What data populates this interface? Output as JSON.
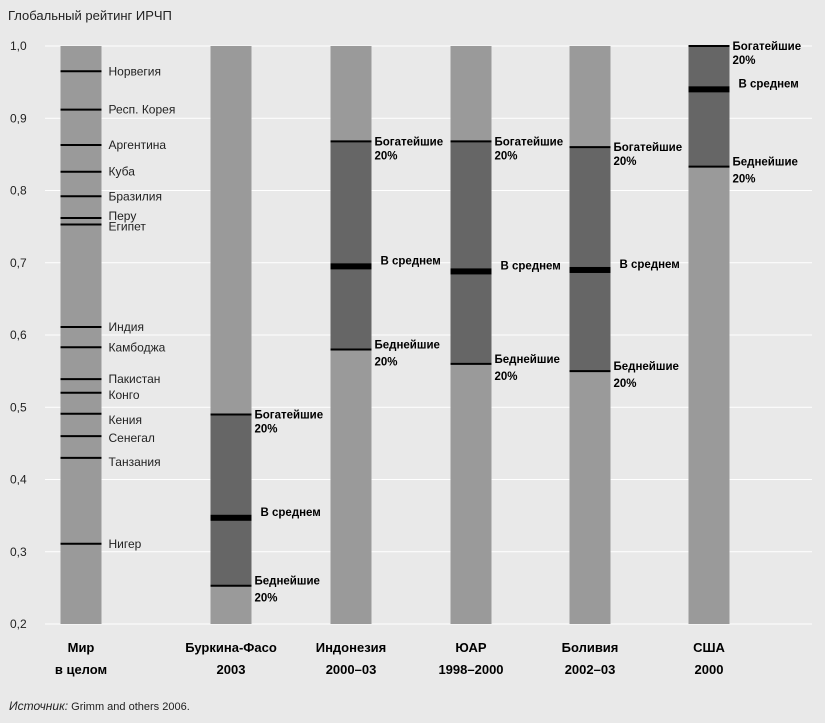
{
  "chart_data": {
    "type": "bar",
    "ylabel": "Глобальный рейтинг ИРЧП",
    "ylim": [
      0.2,
      1.0
    ],
    "yticks": [
      "0,2",
      "0,3",
      "0,4",
      "0,5",
      "0,6",
      "0,7",
      "0,8",
      "0,9",
      "1,0"
    ],
    "grid": true,
    "source_key": "Источник:",
    "source_text": " Grimm and others 2006.",
    "world": {
      "label_line1": "Мир",
      "label_line2": "в целом",
      "countries": [
        {
          "name": "Норвегия",
          "value": 0.965
        },
        {
          "name": "Респ. Корея",
          "value": 0.912
        },
        {
          "name": "Аргентина",
          "value": 0.863
        },
        {
          "name": "Куба",
          "value": 0.826
        },
        {
          "name": "Бразилия",
          "value": 0.792
        },
        {
          "name": "Перу",
          "value": 0.762
        },
        {
          "name": "Египет",
          "value": 0.753
        },
        {
          "name": "Индия",
          "value": 0.611
        },
        {
          "name": "Камбоджа",
          "value": 0.583
        },
        {
          "name": "Пакистан",
          "value": 0.539
        },
        {
          "name": "Конго",
          "value": 0.52
        },
        {
          "name": "Кения",
          "value": 0.491
        },
        {
          "name": "Сенегал",
          "value": 0.46
        },
        {
          "name": "Танзания",
          "value": 0.43
        },
        {
          "name": "Нигер",
          "value": 0.311
        }
      ]
    },
    "countries": [
      {
        "line1": "Буркина-Фасо",
        "line2": "2003",
        "richest": 0.49,
        "average": 0.347,
        "poorest": 0.253,
        "label_pos": "right"
      },
      {
        "line1": "Индонезия",
        "line2": "2000–03",
        "richest": 0.868,
        "average": 0.695,
        "poorest": 0.58,
        "label_pos": "right"
      },
      {
        "line1": "ЮАР",
        "line2": "1998–2000",
        "richest": 0.868,
        "average": 0.688,
        "poorest": 0.56,
        "label_pos": "right"
      },
      {
        "line1": "Боливия",
        "line2": "2002–03",
        "richest": 0.86,
        "average": 0.69,
        "poorest": 0.55,
        "label_pos": "right"
      },
      {
        "line1": "США",
        "line2": "2000",
        "richest": 1.0,
        "average": 0.94,
        "poorest": 0.833,
        "label_pos": "right"
      }
    ],
    "quintile_labels": {
      "richest_line1": "Богатейшие",
      "richest_line2": "20%",
      "average": "В среднем",
      "poorest_line1": "Беднейшие",
      "poorest_line2": "20%"
    },
    "colors": {
      "background": "#e9e9e9",
      "bar": "#9a9a9a",
      "range": "#666666",
      "tick": "#000000",
      "grid": "#ffffff"
    }
  }
}
